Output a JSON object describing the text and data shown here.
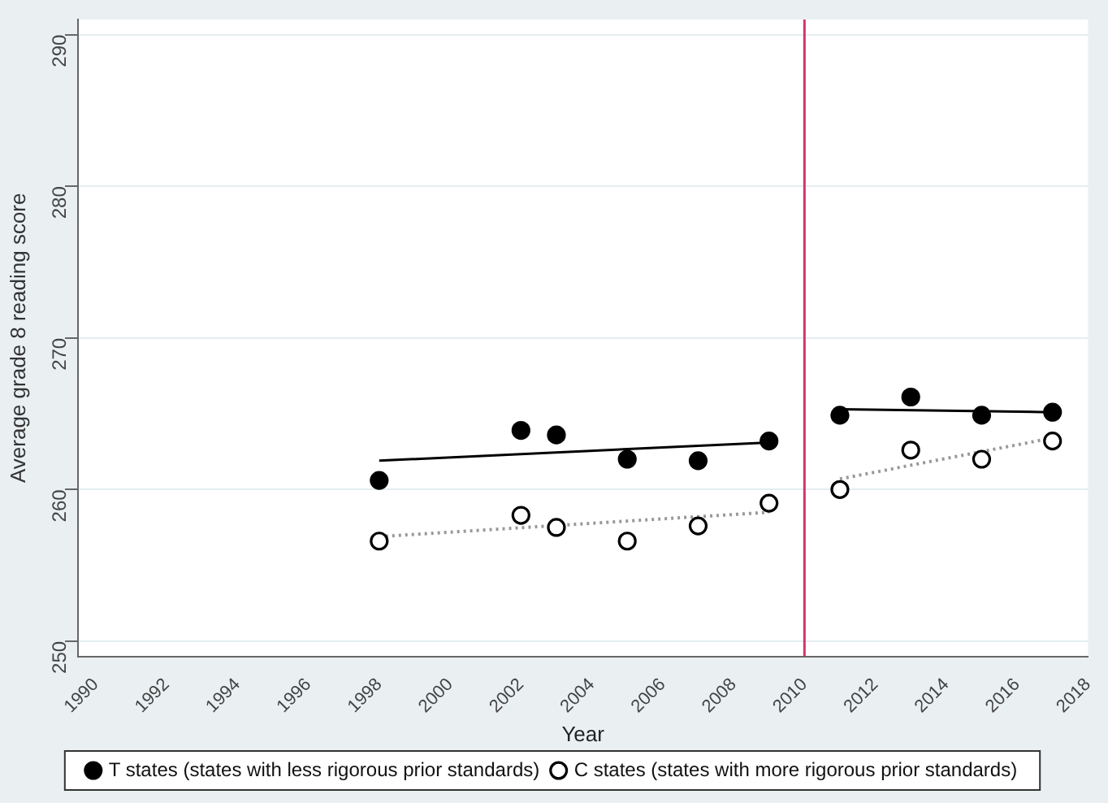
{
  "chart_data": {
    "type": "scatter",
    "xlabel": "Year",
    "ylabel": "Average grade 8 reading score",
    "xlim": [
      1989.5,
      2018
    ],
    "xticks": [
      1990,
      1992,
      1994,
      1996,
      1998,
      2000,
      2002,
      2004,
      2006,
      2008,
      2010,
      2012,
      2014,
      2016,
      2018
    ],
    "ylim": [
      249,
      291
    ],
    "yticks": [
      250,
      260,
      270,
      280,
      290
    ],
    "grid": "y",
    "legend": "bottom",
    "series": [
      {
        "name": "T states (states with less rigorous prior standards)",
        "color": "#000000",
        "marker": "circle",
        "x": [
          1998,
          2002,
          2003,
          2005,
          2007,
          2009,
          2011,
          2013,
          2015,
          2017
        ],
        "values": [
          260.6,
          263.9,
          263.6,
          262.0,
          261.9,
          263.2,
          264.9,
          266.1,
          264.9,
          265.1
        ]
      },
      {
        "name": "C states (states with more rigorous prior standards)",
        "color": "#ffffff",
        "marker": "circle",
        "x": [
          1998,
          2002,
          2003,
          2005,
          2007,
          2009,
          2011,
          2013,
          2015,
          2017
        ],
        "values": [
          256.6,
          258.3,
          257.5,
          256.6,
          257.6,
          259.1,
          260.0,
          262.6,
          262.0,
          263.2
        ]
      },
      {
        "type": "line",
        "color": "#000000",
        "line_style": "solid",
        "marker": "none",
        "x": [
          1998,
          2009
        ],
        "values": [
          261.9,
          263.1
        ]
      },
      {
        "type": "line",
        "color": "#000000",
        "line_style": "solid",
        "marker": "none",
        "x": [
          2011,
          2017
        ],
        "values": [
          265.3,
          265.1
        ]
      },
      {
        "type": "line",
        "color": "#999999",
        "line_style": "dotted",
        "marker": "none",
        "x": [
          1998,
          2009
        ],
        "values": [
          256.9,
          258.5
        ]
      },
      {
        "type": "line",
        "color": "#999999",
        "line_style": "dotted",
        "marker": "none",
        "x": [
          2011,
          2017
        ],
        "values": [
          260.7,
          263.4
        ]
      }
    ],
    "ref_lines": [
      {
        "axis": "x",
        "value": 2010,
        "color": "#d6336c"
      }
    ]
  }
}
